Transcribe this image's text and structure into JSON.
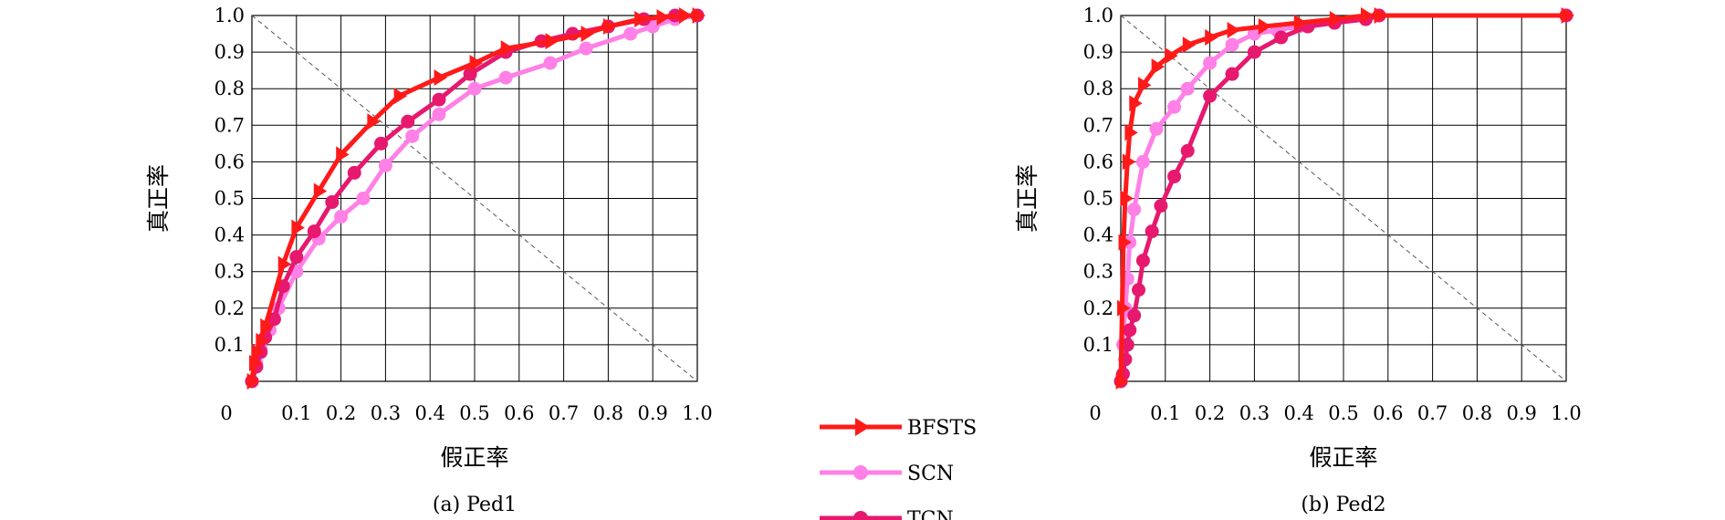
{
  "legend": {
    "placement": "bottom-center",
    "entries": [
      {
        "name": "BFSTS",
        "color": "#ff1a1a",
        "marker": "triangle"
      },
      {
        "name": "SCN",
        "color": "#ff80e6",
        "marker": "circle"
      },
      {
        "name": "TCN",
        "color": "#e6196e",
        "marker": "circle"
      }
    ]
  },
  "chart_data": [
    {
      "type": "line",
      "caption": "(a) Ped1",
      "xlabel": "假正率",
      "ylabel": "真正率",
      "xlim": [
        0,
        1
      ],
      "ylim": [
        0,
        1
      ],
      "grid": true,
      "origin_label": "0",
      "xticks": [
        "0.1",
        "0.2",
        "0.3",
        "0.4",
        "0.5",
        "0.6",
        "0.7",
        "0.8",
        "0.9",
        "1.0"
      ],
      "yticks": [
        "0.1",
        "0.2",
        "0.3",
        "0.4",
        "0.5",
        "0.6",
        "0.7",
        "0.8",
        "0.9",
        "1.0"
      ],
      "diagonal": {
        "from": [
          0,
          1
        ],
        "to": [
          1,
          0
        ],
        "style": "dashed"
      },
      "series": [
        {
          "name": "BFSTS",
          "x": [
            0,
            0.005,
            0.01,
            0.02,
            0.03,
            0.07,
            0.1,
            0.15,
            0.2,
            0.27,
            0.33,
            0.42,
            0.5,
            0.57,
            0.67,
            0.75,
            0.8,
            0.87,
            0.92,
            0.97,
            1.0
          ],
          "y": [
            0,
            0.05,
            0.08,
            0.11,
            0.15,
            0.32,
            0.42,
            0.52,
            0.62,
            0.71,
            0.78,
            0.83,
            0.87,
            0.91,
            0.93,
            0.95,
            0.97,
            0.99,
            0.995,
            1.0,
            1.0
          ]
        },
        {
          "name": "SCN",
          "x": [
            0,
            0.01,
            0.02,
            0.04,
            0.06,
            0.1,
            0.15,
            0.2,
            0.25,
            0.3,
            0.36,
            0.42,
            0.5,
            0.57,
            0.67,
            0.75,
            0.85,
            0.9,
            0.95,
            1.0
          ],
          "y": [
            0,
            0.05,
            0.09,
            0.14,
            0.2,
            0.3,
            0.39,
            0.45,
            0.5,
            0.59,
            0.67,
            0.73,
            0.8,
            0.83,
            0.87,
            0.91,
            0.95,
            0.97,
            0.99,
            1.0
          ]
        },
        {
          "name": "TCN",
          "x": [
            0,
            0.01,
            0.02,
            0.03,
            0.05,
            0.07,
            0.1,
            0.14,
            0.18,
            0.23,
            0.29,
            0.35,
            0.42,
            0.49,
            0.57,
            0.65,
            0.72,
            0.8,
            0.88,
            0.95,
            1.0
          ],
          "y": [
            0,
            0.04,
            0.08,
            0.12,
            0.17,
            0.26,
            0.34,
            0.41,
            0.49,
            0.57,
            0.65,
            0.71,
            0.77,
            0.84,
            0.9,
            0.93,
            0.95,
            0.97,
            0.99,
            1.0,
            1.0
          ]
        }
      ]
    },
    {
      "type": "line",
      "caption": "(b) Ped2",
      "xlabel": "假正率",
      "ylabel": "真正率",
      "xlim": [
        0,
        1
      ],
      "ylim": [
        0,
        1
      ],
      "grid": true,
      "origin_label": "0",
      "xticks": [
        "0.1",
        "0.2",
        "0.3",
        "0.4",
        "0.5",
        "0.6",
        "0.7",
        "0.8",
        "0.9",
        "1.0"
      ],
      "yticks": [
        "0.1",
        "0.2",
        "0.3",
        "0.4",
        "0.5",
        "0.6",
        "0.7",
        "0.8",
        "0.9",
        "1.0"
      ],
      "diagonal": {
        "from": [
          0,
          1
        ],
        "to": [
          1,
          0
        ],
        "style": "dashed"
      },
      "series": [
        {
          "name": "BFSTS",
          "x": [
            0,
            0.003,
            0.006,
            0.01,
            0.015,
            0.02,
            0.03,
            0.05,
            0.08,
            0.11,
            0.15,
            0.2,
            0.25,
            0.32,
            0.4,
            0.48,
            0.55,
            0.58,
            1.0
          ],
          "y": [
            0,
            0.2,
            0.38,
            0.5,
            0.6,
            0.68,
            0.76,
            0.81,
            0.86,
            0.89,
            0.92,
            0.94,
            0.96,
            0.97,
            0.98,
            0.99,
            1.0,
            1.0,
            1.0
          ]
        },
        {
          "name": "SCN",
          "x": [
            0,
            0.005,
            0.01,
            0.015,
            0.02,
            0.03,
            0.05,
            0.08,
            0.12,
            0.15,
            0.2,
            0.25,
            0.3,
            0.35,
            0.4,
            0.48,
            0.55,
            0.58,
            1.0
          ],
          "y": [
            0,
            0.1,
            0.2,
            0.28,
            0.38,
            0.47,
            0.6,
            0.69,
            0.75,
            0.8,
            0.87,
            0.92,
            0.95,
            0.96,
            0.97,
            0.98,
            0.99,
            1.0,
            1.0
          ]
        },
        {
          "name": "TCN",
          "x": [
            0,
            0.005,
            0.01,
            0.015,
            0.02,
            0.03,
            0.04,
            0.05,
            0.07,
            0.09,
            0.12,
            0.15,
            0.2,
            0.25,
            0.3,
            0.36,
            0.42,
            0.48,
            0.55,
            0.58,
            1.0
          ],
          "y": [
            0,
            0.02,
            0.06,
            0.1,
            0.14,
            0.18,
            0.25,
            0.33,
            0.41,
            0.48,
            0.56,
            0.63,
            0.78,
            0.84,
            0.9,
            0.94,
            0.97,
            0.98,
            0.99,
            1.0,
            1.0
          ]
        }
      ]
    }
  ]
}
